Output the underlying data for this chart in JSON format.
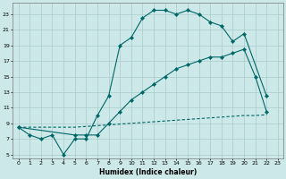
{
  "xlabel": "Humidex (Indice chaleur)",
  "bg_color": "#cce8e8",
  "line_color": "#006666",
  "grid_color": "#aacccc",
  "xlim": [
    -0.5,
    23.5
  ],
  "ylim": [
    4.5,
    24.5
  ],
  "xticks": [
    0,
    1,
    2,
    3,
    4,
    5,
    6,
    7,
    8,
    9,
    10,
    11,
    12,
    13,
    14,
    15,
    16,
    17,
    18,
    19,
    20,
    21,
    22,
    23
  ],
  "yticks": [
    5,
    7,
    9,
    11,
    13,
    15,
    17,
    19,
    21,
    23
  ],
  "line1_x": [
    0,
    1,
    2,
    3,
    4,
    5,
    6,
    7,
    8,
    9,
    10,
    11,
    12,
    13,
    14,
    15,
    16,
    17,
    18,
    19,
    20,
    22
  ],
  "line1_y": [
    8.5,
    7.5,
    7.0,
    7.5,
    5.0,
    7.0,
    7.0,
    10.0,
    12.5,
    19.0,
    20.0,
    22.5,
    23.5,
    23.5,
    23.0,
    23.5,
    23.0,
    22.0,
    21.5,
    19.5,
    20.5,
    12.5
  ],
  "line2_x": [
    0,
    5,
    6,
    7,
    8,
    9,
    10,
    11,
    12,
    13,
    14,
    15,
    16,
    17,
    18,
    19,
    20,
    21,
    22
  ],
  "line2_y": [
    8.5,
    7.5,
    7.5,
    7.5,
    9.0,
    10.5,
    12.0,
    13.0,
    14.0,
    15.0,
    16.0,
    16.5,
    17.0,
    17.5,
    17.5,
    18.0,
    18.5,
    15.0,
    10.5
  ],
  "line3_x": [
    0,
    1,
    2,
    3,
    4,
    5,
    6,
    7,
    8,
    9,
    10,
    11,
    12,
    13,
    14,
    15,
    16,
    17,
    18,
    19,
    20,
    21,
    22
  ],
  "line3_y": [
    8.5,
    8.5,
    8.5,
    8.5,
    8.5,
    8.5,
    8.6,
    8.7,
    8.8,
    8.9,
    9.0,
    9.1,
    9.2,
    9.3,
    9.4,
    9.5,
    9.6,
    9.7,
    9.8,
    9.9,
    10.0,
    10.0,
    10.1
  ]
}
